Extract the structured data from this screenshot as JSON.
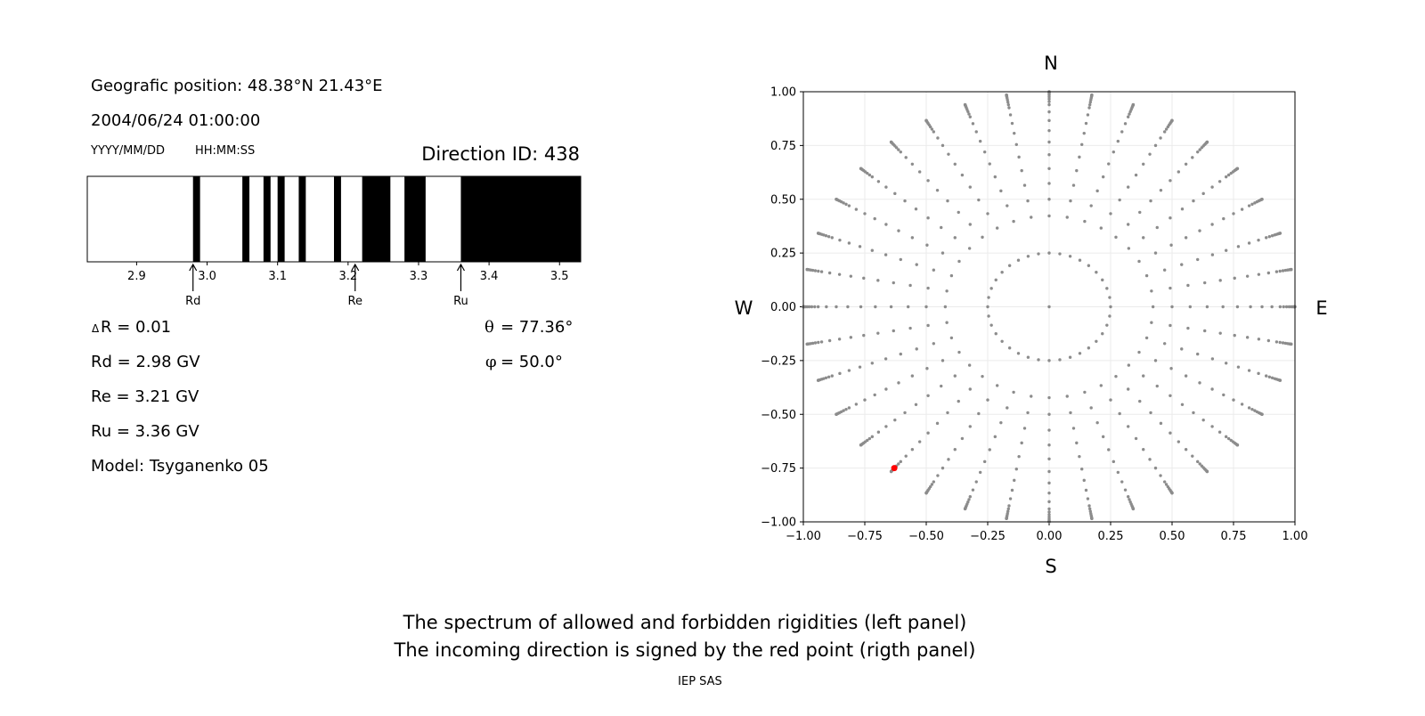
{
  "info": {
    "position": "Geografic position: 48.38°N 21.43°E",
    "datetime": "2004/06/24 01:00:00",
    "date_format": "YYYY/MM/DD",
    "time_format": "HH:MM:SS",
    "direction_id": "Direction ID: 438"
  },
  "params": {
    "delta_symbol": "Δ",
    "delta_r": "R = 0.01",
    "rd": "Rd = 2.98 GV",
    "re": "Re = 3.21 GV",
    "ru": "Ru = 3.36 GV",
    "model": "Model: Tsyganenko 05",
    "theta_symbol": "θ",
    "theta": "= 77.36°",
    "phi_symbol": "φ",
    "phi": "= 50.0°"
  },
  "chart_data": [
    {
      "type": "bar",
      "description_kind": "rigidity spectrum (black = forbidden, white = allowed)",
      "xlim": [
        2.83,
        3.53
      ],
      "xticks": [
        "2.9",
        "3.0",
        "3.1",
        "3.2",
        "3.3",
        "3.4",
        "3.5"
      ],
      "forbidden_bands": [
        [
          2.98,
          2.99
        ],
        [
          3.05,
          3.06
        ],
        [
          3.08,
          3.09
        ],
        [
          3.1,
          3.11
        ],
        [
          3.13,
          3.14
        ],
        [
          3.18,
          3.19
        ],
        [
          3.22,
          3.26
        ],
        [
          3.28,
          3.31
        ],
        [
          3.36,
          3.53
        ]
      ],
      "markers": [
        {
          "label": "Rd",
          "value": 2.98
        },
        {
          "label": "Re",
          "value": 3.21
        },
        {
          "label": "Ru",
          "value": 3.36
        }
      ],
      "colors": {
        "forbidden": "#000000",
        "allowed": "#ffffff"
      }
    },
    {
      "type": "scatter",
      "xlim": [
        -1.0,
        1.0
      ],
      "ylim": [
        -1.0,
        1.0
      ],
      "xticks": [
        "−1.00",
        "−0.75",
        "−0.50",
        "−0.25",
        "0.00",
        "0.25",
        "0.50",
        "0.75",
        "1.00"
      ],
      "yticks": [
        "−1.00",
        "−0.75",
        "−0.50",
        "−0.25",
        "0.00",
        "0.25",
        "0.50",
        "0.75",
        "1.00"
      ],
      "grid": true,
      "directions": {
        "north": "N",
        "south": "S",
        "east": "E",
        "west": "W"
      },
      "grid_points": {
        "center": [
          0,
          0
        ],
        "inner_ring_radius": 0.25,
        "inner_ring_azimuth_step_deg": 10,
        "ray_azimuth_step_deg": 10,
        "ray_zenith_deg": [
          25,
          30,
          35,
          40,
          45,
          50,
          55,
          60,
          65,
          70,
          72.5,
          75,
          77.5,
          80,
          82.5,
          85,
          86.5,
          88,
          89,
          90
        ]
      },
      "highlight_point": {
        "x": -0.63,
        "y": -0.75,
        "color": "#ff0000"
      },
      "point_color": "#8c8c8c"
    }
  ],
  "caption": {
    "line1": "The spectrum of allowed and forbidden rigidities (left panel)",
    "line2": "The incoming direction is signed by the red point (rigth panel)",
    "credit": "IEP SAS"
  }
}
